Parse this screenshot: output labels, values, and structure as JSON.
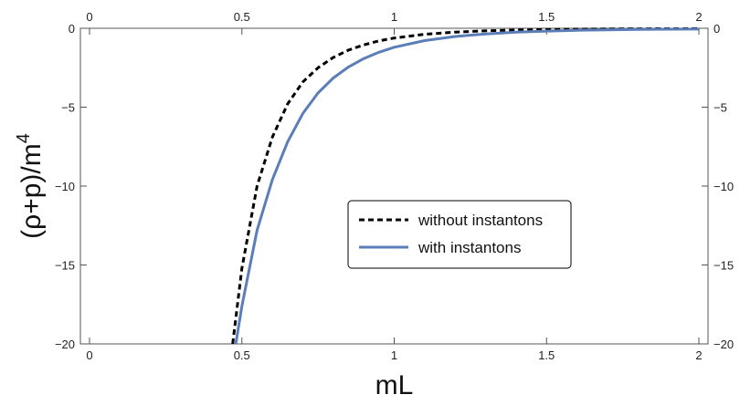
{
  "chart_data": {
    "type": "line",
    "xlabel": "mL",
    "ylabel_base": "(ρ+p)/m",
    "ylabel_exponent": "4",
    "xlim": [
      -0.03,
      2.03
    ],
    "ylim": [
      -20,
      0
    ],
    "x_ticks": [
      0,
      0.5,
      1,
      1.5,
      2
    ],
    "x_tick_labels": [
      "0",
      "0.5",
      "1",
      "1.5",
      "2"
    ],
    "y_ticks": [
      0,
      -5,
      -10,
      -15,
      -20
    ],
    "y_tick_labels": [
      "0",
      "−5",
      "−10",
      "−15",
      "−20"
    ],
    "frame_ticks_mirrored": true,
    "grid": false,
    "legend_position": "center-right",
    "series": [
      {
        "name": "without instantons",
        "color": "#000000",
        "style": "dashed",
        "x": [
          0.47,
          0.5,
          0.55,
          0.6,
          0.65,
          0.7,
          0.75,
          0.8,
          0.85,
          0.9,
          0.95,
          1.0,
          1.1,
          1.2,
          1.3,
          1.4,
          1.5,
          1.6,
          1.7,
          1.8,
          1.9,
          2.0
        ],
        "y": [
          -20,
          -15.2,
          -10.0,
          -6.9,
          -4.8,
          -3.4,
          -2.5,
          -1.85,
          -1.38,
          -1.05,
          -0.8,
          -0.62,
          -0.38,
          -0.24,
          -0.16,
          -0.11,
          -0.08,
          -0.06,
          -0.045,
          -0.035,
          -0.03,
          -0.025
        ]
      },
      {
        "name": "with instantons",
        "color": "#5b7db8",
        "style": "solid",
        "x": [
          0.48,
          0.5,
          0.55,
          0.6,
          0.65,
          0.7,
          0.75,
          0.8,
          0.85,
          0.9,
          0.95,
          1.0,
          1.1,
          1.2,
          1.3,
          1.4,
          1.5,
          1.6,
          1.7,
          1.8,
          1.9,
          2.0
        ],
        "y": [
          -20,
          -17.6,
          -12.8,
          -9.6,
          -7.2,
          -5.4,
          -4.1,
          -3.15,
          -2.45,
          -1.92,
          -1.52,
          -1.2,
          -0.78,
          -0.52,
          -0.36,
          -0.25,
          -0.18,
          -0.13,
          -0.1,
          -0.075,
          -0.06,
          -0.05
        ]
      }
    ]
  }
}
